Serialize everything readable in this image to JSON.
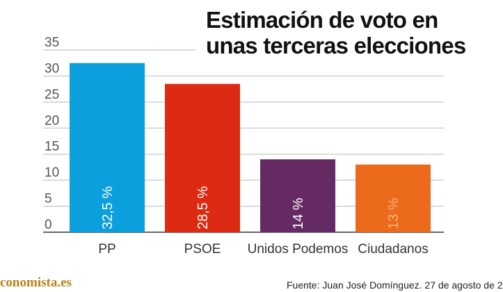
{
  "title_lines": [
    "Estimación de voto en",
    "unas terceras elecciones"
  ],
  "brand": "conomista.es",
  "source": "Fuente: Juan José Domínguez. 27 de agosto de 2",
  "chart_data": {
    "type": "bar",
    "title": "Estimación de voto en unas terceras elecciones",
    "categories": [
      "PP",
      "PSOE",
      "Unidos Podemos",
      "Ciudadanos"
    ],
    "values": [
      32.5,
      28.5,
      14,
      13
    ],
    "value_labels": [
      "32,5 %",
      "28,5 %",
      "14 %",
      "13 %"
    ],
    "colors": [
      "#0b9fdd",
      "#dd2a12",
      "#652a63",
      "#eb6a1c"
    ],
    "label_colors": [
      "#ffffff",
      "#ffffff",
      "#ffffff",
      "#f6b07a"
    ],
    "yticks": [
      "0",
      "5",
      "10",
      "15",
      "20",
      "25",
      "30",
      "35"
    ],
    "ylim": [
      0,
      35
    ],
    "grid": true,
    "xlabel": "",
    "ylabel": ""
  }
}
